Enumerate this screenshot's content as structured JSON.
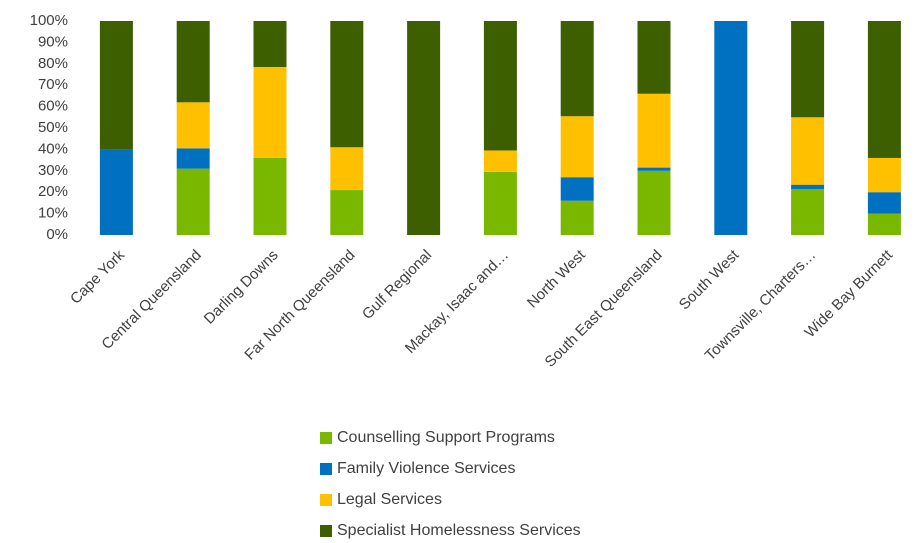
{
  "chart_data": {
    "type": "stacked_bar",
    "categories": [
      "Cape York",
      "Central Queensland",
      "Darling Downs",
      "Far North Queensland",
      "Gulf Regional",
      "Mackay, Isaac and…",
      "North West",
      "South East Queensland",
      "South West",
      "Townsville, Charters…",
      "Wide Bay Burnett"
    ],
    "series": [
      {
        "name": "Counselling Support Programs",
        "color": "#7ab800",
        "values": [
          0,
          31,
          36,
          21,
          0,
          29.5,
          16,
          30,
          0,
          21.5,
          10
        ]
      },
      {
        "name": "Family Violence Services",
        "color": "#0070c0",
        "values": [
          40,
          9.5,
          0,
          0,
          0,
          0,
          11,
          1.5,
          100,
          2,
          10
        ]
      },
      {
        "name": "Legal Services",
        "color": "#ffc000",
        "values": [
          0,
          21.5,
          42.5,
          20,
          0,
          10,
          28.5,
          34.5,
          0,
          31.5,
          16
        ]
      },
      {
        "name": "Specialist Homelessness Services",
        "color": "#3d5f00",
        "values": [
          60,
          38,
          21.5,
          59,
          100,
          60.5,
          44.5,
          34,
          0,
          45,
          64
        ]
      }
    ],
    "ylim": [
      0,
      100
    ],
    "yticks": [
      {
        "value": 0,
        "label": "0%"
      },
      {
        "value": 10,
        "label": "10%"
      },
      {
        "value": 20,
        "label": "20%"
      },
      {
        "value": 30,
        "label": "30%"
      },
      {
        "value": 40,
        "label": "40%"
      },
      {
        "value": 50,
        "label": "50%"
      },
      {
        "value": 60,
        "label": "60%"
      },
      {
        "value": 70,
        "label": "70%"
      },
      {
        "value": 80,
        "label": "80%"
      },
      {
        "value": 90,
        "label": "90%"
      },
      {
        "value": 100,
        "label": "100%"
      }
    ],
    "legend": "bottom"
  }
}
